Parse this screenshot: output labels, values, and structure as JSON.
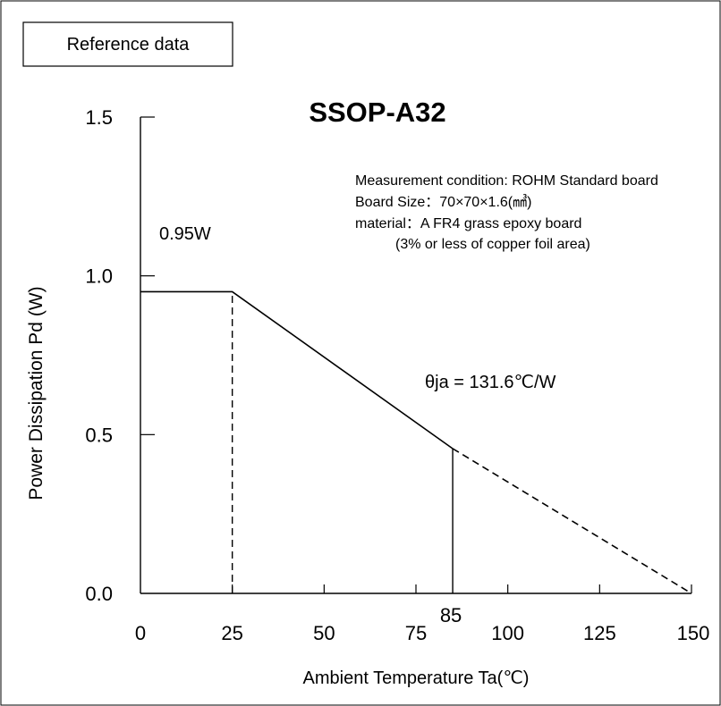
{
  "reference_label": "Reference data",
  "chart_data": {
    "type": "line",
    "title": "SSOP-A32",
    "xlabel": "Ambient Temperature Ta(℃)",
    "ylabel": "Power Dissipation Pd (W)",
    "xlim": [
      0,
      150
    ],
    "ylim": [
      0,
      1.5
    ],
    "x_ticks": [
      0,
      25,
      50,
      75,
      100,
      125,
      150
    ],
    "x_tick_labels": [
      "0",
      "25",
      "50",
      "75",
      "100",
      "125",
      "150"
    ],
    "y_ticks": [
      0,
      0.5,
      1.0,
      1.5
    ],
    "y_tick_labels": [
      "0.0",
      "0.5",
      "1.0",
      "1.5"
    ],
    "grid": false,
    "series": [
      {
        "x": [
          0,
          25,
          85
        ],
        "y": [
          0.95,
          0.95,
          0.456
        ],
        "style": "solid"
      },
      {
        "x": [
          85,
          150
        ],
        "y": [
          0.456,
          0
        ],
        "style": "dashed"
      }
    ],
    "guides": [
      {
        "x": 25,
        "from": 0,
        "to": 0.95,
        "style": "dashed"
      },
      {
        "x": 85,
        "from": 0,
        "to": 0.456,
        "style": "solid"
      }
    ],
    "extra_x_label": {
      "x": 85,
      "text": "85"
    },
    "annotations": [
      {
        "text": "0.95W"
      },
      {
        "text": "θja = 131.6℃/W"
      }
    ],
    "measurement_lines": [
      "Measurement condition: ROHM Standard board",
      "Board Size：70×70×1.6(㎣)",
      "material：A FR4 grass epoxy board",
      "(3% or less of copper foil area)"
    ]
  }
}
